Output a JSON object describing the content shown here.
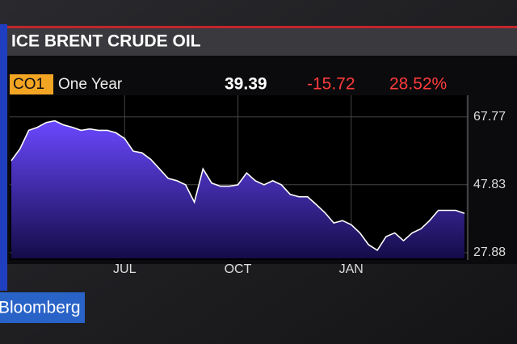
{
  "chart_data": {
    "type": "area",
    "title": "ICE BRENT CRUDE OIL",
    "ticker": "CO1",
    "period": "One Year",
    "last": "39.39",
    "change": "-15.72",
    "change_pct": "28.52%",
    "categories": [
      null,
      null,
      null,
      null,
      null,
      null,
      null,
      null,
      null,
      null,
      null,
      null,
      null,
      "JUL",
      null,
      null,
      null,
      null,
      null,
      null,
      null,
      null,
      null,
      null,
      null,
      null,
      "OCT",
      null,
      null,
      null,
      null,
      null,
      null,
      null,
      null,
      null,
      null,
      null,
      null,
      "JAN",
      null,
      null,
      null,
      null,
      null,
      null,
      null,
      null,
      null,
      null,
      null,
      null,
      null
    ],
    "values": [
      54.9,
      58.4,
      63.8,
      64.7,
      66.1,
      66.6,
      65.4,
      64.7,
      63.8,
      64.2,
      63.8,
      63.8,
      63.1,
      61.4,
      57.7,
      57.2,
      55.3,
      52.5,
      49.7,
      49.0,
      47.8,
      42.7,
      52.5,
      48.3,
      47.4,
      47.4,
      47.8,
      51.3,
      49.0,
      47.8,
      49.0,
      47.8,
      45.0,
      44.3,
      44.3,
      42.0,
      39.6,
      36.6,
      37.3,
      36.1,
      33.7,
      30.2,
      28.6,
      32.6,
      33.7,
      31.4,
      33.7,
      34.9,
      37.3,
      40.3,
      40.3,
      40.3,
      39.4
    ],
    "color": "#ffffff",
    "ylim": [
      26.2,
      74.1
    ],
    "yticks": [
      27.88,
      47.83,
      67.77
    ],
    "grid": true,
    "brand": "Bloomberg"
  }
}
